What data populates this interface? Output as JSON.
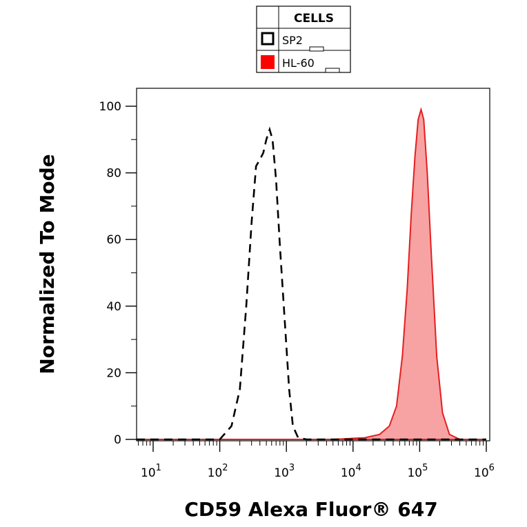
{
  "chart_data": {
    "type": "histogram",
    "xlabel": "CD59 Alexa Fluor® 647",
    "ylabel": "Normalized To Mode",
    "x_scale": "log",
    "xlim": [
      0.2,
      1000000
    ],
    "ylim": [
      0,
      100
    ],
    "x_ticks": [
      {
        "value": 10,
        "base": "10",
        "exp": "1"
      },
      {
        "value": 100,
        "base": "10",
        "exp": "2"
      },
      {
        "value": 1000,
        "base": "10",
        "exp": "3"
      },
      {
        "value": 10000,
        "base": "10",
        "exp": "4"
      },
      {
        "value": 100000,
        "base": "10",
        "exp": "5"
      },
      {
        "value": 1000000,
        "base": "10",
        "exp": "6"
      }
    ],
    "y_ticks": [
      "0",
      "20",
      "40",
      "60",
      "80",
      "100"
    ],
    "legend": {
      "header": "CELLS",
      "entries": [
        {
          "name": "SP2",
          "style": "dashed-outline"
        },
        {
          "name": "HL-60",
          "style": "filled"
        }
      ]
    },
    "series": [
      {
        "name": "SP2",
        "style": "dashed",
        "color": "#000000",
        "points": [
          [
            0.2,
            0
          ],
          [
            40,
            0
          ],
          [
            100,
            0
          ],
          [
            150,
            4
          ],
          [
            200,
            15
          ],
          [
            250,
            40
          ],
          [
            300,
            65
          ],
          [
            350,
            82
          ],
          [
            400,
            84
          ],
          [
            450,
            86
          ],
          [
            500,
            90
          ],
          [
            560,
            93
          ],
          [
            620,
            90
          ],
          [
            700,
            78
          ],
          [
            800,
            58
          ],
          [
            950,
            35
          ],
          [
            1100,
            15
          ],
          [
            1250,
            4
          ],
          [
            1500,
            0.5
          ],
          [
            2000,
            0
          ],
          [
            1000000,
            0
          ]
        ]
      },
      {
        "name": "HL-60",
        "style": "filled",
        "color": "#e51e1e",
        "fill": "#f7a3a3",
        "points": [
          [
            0.2,
            0
          ],
          [
            5000,
            0
          ],
          [
            15000,
            0.5
          ],
          [
            25000,
            1.5
          ],
          [
            35000,
            4
          ],
          [
            45000,
            10
          ],
          [
            55000,
            25
          ],
          [
            65000,
            45
          ],
          [
            75000,
            68
          ],
          [
            85000,
            85
          ],
          [
            95000,
            96
          ],
          [
            105000,
            99
          ],
          [
            115000,
            96
          ],
          [
            130000,
            80
          ],
          [
            150000,
            55
          ],
          [
            180000,
            25
          ],
          [
            220000,
            8
          ],
          [
            280000,
            1.5
          ],
          [
            400000,
            0
          ],
          [
            1000000,
            0
          ]
        ]
      }
    ]
  }
}
